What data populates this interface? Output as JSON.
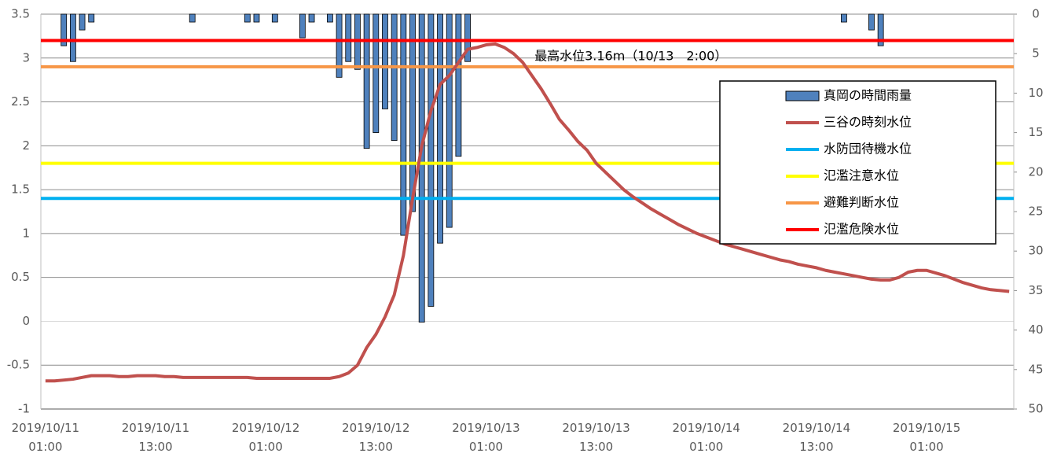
{
  "chart_data": {
    "type": "combo",
    "annotation": "最高水位3.16m（10/13　2:00）",
    "annotation_point": 49,
    "categories": [
      "2019/10/11\n01:00",
      null,
      null,
      null,
      null,
      null,
      null,
      null,
      null,
      null,
      null,
      null,
      "2019/10/11\n13:00",
      null,
      null,
      null,
      null,
      null,
      null,
      null,
      null,
      null,
      null,
      null,
      "2019/10/12\n01:00",
      null,
      null,
      null,
      null,
      null,
      null,
      null,
      null,
      null,
      null,
      null,
      "2019/10/12\n13:00",
      null,
      null,
      null,
      null,
      null,
      null,
      null,
      null,
      null,
      null,
      null,
      "2019/10/13\n01:00",
      null,
      null,
      null,
      null,
      null,
      null,
      null,
      null,
      null,
      null,
      null,
      "2019/10/13\n13:00",
      null,
      null,
      null,
      null,
      null,
      null,
      null,
      null,
      null,
      null,
      null,
      "2019/10/14\n01:00",
      null,
      null,
      null,
      null,
      null,
      null,
      null,
      null,
      null,
      null,
      null,
      "2019/10/14\n13:00",
      null,
      null,
      null,
      null,
      null,
      null,
      null,
      null,
      null,
      null,
      null,
      "2019/10/15\n01:00",
      null,
      null,
      null,
      null,
      null,
      null,
      null,
      null,
      null
    ],
    "ylim": [
      -1,
      3.5
    ],
    "yticks": [
      -1,
      -0.5,
      0,
      0.5,
      1,
      1.5,
      2,
      2.5,
      3,
      3.5
    ],
    "y2lim": [
      0,
      50
    ],
    "y2ticks": [
      0,
      5,
      10,
      15,
      20,
      25,
      30,
      35,
      40,
      45,
      50
    ],
    "y2_inverted": true,
    "grid": true,
    "series": [
      {
        "name": "真岡の時間雨量",
        "type": "bar",
        "axis": "y2",
        "color": "#4f81bd",
        "values": [
          0,
          0,
          4,
          6,
          2,
          1,
          0,
          0,
          0,
          0,
          0,
          0,
          0,
          0,
          0,
          0,
          1,
          0,
          0,
          0,
          0,
          0,
          1,
          1,
          0,
          1,
          0,
          0,
          3,
          1,
          0,
          1,
          8,
          6,
          7,
          17,
          15,
          12,
          16,
          28,
          25,
          39,
          37,
          29,
          27,
          18,
          6,
          0,
          0,
          0,
          0,
          0,
          0,
          0,
          0,
          0,
          0,
          0,
          0,
          0,
          0,
          0,
          0,
          0,
          0,
          0,
          0,
          0,
          0,
          0,
          0,
          0,
          0,
          0,
          0,
          0,
          0,
          0,
          0,
          0,
          0,
          0,
          0,
          0,
          0,
          0,
          0,
          1,
          0,
          0,
          2,
          4,
          0,
          0,
          0,
          0,
          0,
          0,
          0,
          0,
          0,
          0,
          0,
          0,
          0,
          0
        ]
      },
      {
        "name": "三谷の時刻水位",
        "type": "line",
        "color": "#c0504d",
        "values": [
          -0.68,
          -0.68,
          -0.67,
          -0.66,
          -0.64,
          -0.62,
          -0.62,
          -0.62,
          -0.63,
          -0.63,
          -0.62,
          -0.62,
          -0.62,
          -0.63,
          -0.63,
          -0.64,
          -0.64,
          -0.64,
          -0.64,
          -0.64,
          -0.64,
          -0.64,
          -0.64,
          -0.65,
          -0.65,
          -0.65,
          -0.65,
          -0.65,
          -0.65,
          -0.65,
          -0.65,
          -0.65,
          -0.63,
          -0.59,
          -0.5,
          -0.3,
          -0.15,
          0.05,
          0.3,
          0.75,
          1.4,
          2.0,
          2.4,
          2.7,
          2.8,
          2.95,
          3.1,
          3.12,
          3.15,
          3.16,
          3.12,
          3.05,
          2.95,
          2.8,
          2.65,
          2.48,
          2.3,
          2.18,
          2.05,
          1.95,
          1.8,
          1.7,
          1.6,
          1.5,
          1.42,
          1.35,
          1.28,
          1.22,
          1.16,
          1.1,
          1.05,
          1.0,
          0.96,
          0.92,
          0.88,
          0.85,
          0.82,
          0.79,
          0.76,
          0.73,
          0.7,
          0.68,
          0.65,
          0.63,
          0.61,
          0.58,
          0.56,
          0.54,
          0.52,
          0.5,
          0.48,
          0.47,
          0.47,
          0.5,
          0.56,
          0.58,
          0.58,
          0.55,
          0.52,
          0.48,
          0.44,
          0.41,
          0.38,
          0.36,
          0.35,
          0.34
        ]
      },
      {
        "name": "水防団待機水位",
        "type": "hline",
        "color": "#00b0f0",
        "value": 1.4
      },
      {
        "name": "氾濫注意水位",
        "type": "hline",
        "color": "#ffff00",
        "value": 1.8
      },
      {
        "name": "避難判断水位",
        "type": "hline",
        "color": "#f79646",
        "value": 2.9
      },
      {
        "name": "氾濫危険水位",
        "type": "hline",
        "color": "#ff0000",
        "value": 3.2
      }
    ]
  }
}
